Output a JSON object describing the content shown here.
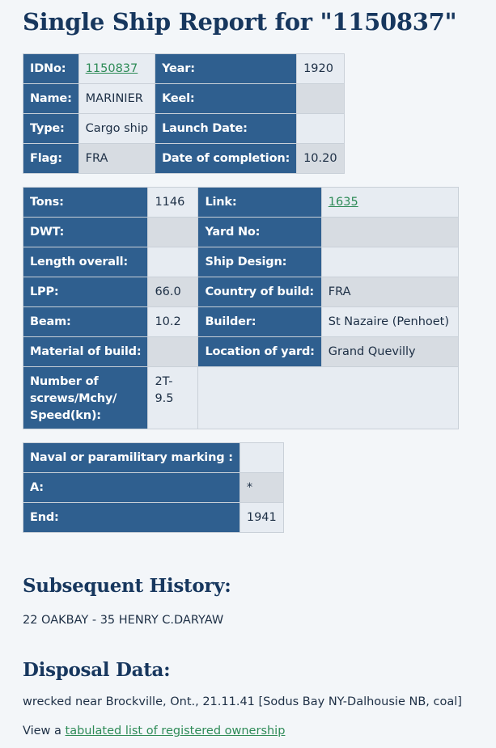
{
  "page": {
    "title": "Single Ship Report for \"1150837\""
  },
  "basic": {
    "idno_label": "IDNo:",
    "idno_value": "1150837",
    "year_label": "Year:",
    "year_value": "1920",
    "name_label": "Name:",
    "name_value": "MARINIER",
    "keel_label": "Keel:",
    "keel_value": "",
    "type_label": "Type:",
    "type_value": "Cargo ship",
    "launch_label": "Launch Date:",
    "launch_value": "",
    "flag_label": "Flag:",
    "flag_value": "FRA",
    "completion_label": "Date of completion:",
    "completion_value": "10.20"
  },
  "specs": {
    "tons_label": "Tons:",
    "tons_value": "1146",
    "link_label": "Link:",
    "link_value": "1635",
    "dwt_label": "DWT:",
    "dwt_value": "",
    "yard_no_label": "Yard No:",
    "yard_no_value": "",
    "length_label": "Length overall:",
    "length_value": "",
    "design_label": "Ship Design:",
    "design_value": "",
    "lpp_label": "LPP:",
    "lpp_value": "66.0",
    "country_label": "Country of build:",
    "country_value": "FRA",
    "beam_label": "Beam:",
    "beam_value": "10.2",
    "builder_label": "Builder:",
    "builder_value": "St Nazaire (Penhoet)",
    "material_label": "Material of build:",
    "material_value": "",
    "yard_loc_label": "Location of yard:",
    "yard_loc_value": "Grand Quevilly",
    "screws_label": "Number of screws/Mchy/ Speed(kn):",
    "screws_value": "2T-9.5"
  },
  "marking": {
    "naval_label": "Naval or paramilitary marking :",
    "naval_value": "",
    "a_label": "A:",
    "a_value": "*",
    "end_label": "End:",
    "end_value": "1941"
  },
  "history": {
    "heading": "Subsequent History:",
    "text": "22 OAKBAY - 35 HENRY C.DARYAW"
  },
  "disposal": {
    "heading": "Disposal Data:",
    "text": "wrecked near Brockville, Ont., 21.11.41 [Sodus Bay NY-Dalhousie NB, coal]",
    "view_prefix": "View a ",
    "view_link": "tabulated list of registered ownership"
  },
  "colors": {
    "label_bg": "#2f5f8f",
    "heading": "#17375e",
    "link": "#2e8b57",
    "cell_light": "#e7ecf2",
    "cell_dark": "#d7dce2"
  }
}
